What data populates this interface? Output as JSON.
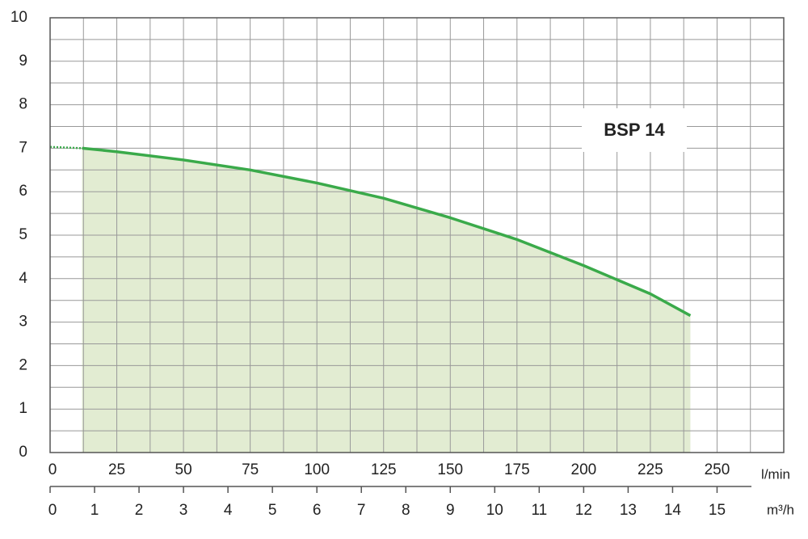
{
  "chart_data": {
    "type": "line",
    "annotation": "BSP 14",
    "xlabel": "l/min",
    "x2label": "m³/h",
    "xlim": [
      0,
      275
    ],
    "xticks": [
      0,
      25,
      50,
      75,
      100,
      125,
      150,
      175,
      200,
      225,
      250
    ],
    "x2lim": [
      0,
      16.5
    ],
    "x2ticks": [
      0,
      1,
      2,
      3,
      4,
      5,
      6,
      7,
      8,
      9,
      10,
      11,
      12,
      13,
      14,
      15
    ],
    "ylim": [
      0,
      10
    ],
    "yticks": [
      0,
      1,
      2,
      3,
      4,
      5,
      6,
      7,
      8,
      9,
      10
    ],
    "xgrid": [
      0,
      12.5,
      25,
      37.5,
      50,
      62.5,
      75,
      87.5,
      100,
      112.5,
      125,
      137.5,
      150,
      162.5,
      175,
      187.5,
      200,
      212.5,
      225,
      237.5,
      250,
      262.5,
      275
    ],
    "ygrid": [
      0,
      0.5,
      1,
      1.5,
      2,
      2.5,
      3,
      3.5,
      4,
      4.5,
      5,
      5.5,
      6,
      6.5,
      7,
      7.5,
      8,
      8.5,
      9,
      9.5,
      10
    ],
    "grid": true,
    "series": [
      {
        "name": "BSP 14",
        "color": "#3aaa4a",
        "fill": "#e2ecd2",
        "x": [
          12,
          25,
          50,
          75,
          100,
          125,
          150,
          175,
          200,
          225,
          240
        ],
        "values": [
          7.0,
          6.92,
          6.73,
          6.5,
          6.2,
          5.85,
          5.4,
          4.9,
          4.3,
          3.65,
          3.15
        ]
      }
    ],
    "dotted_segment": {
      "color": "#3aaa4a",
      "x": [
        0,
        12
      ],
      "values": [
        7.03,
        7.0
      ]
    }
  }
}
